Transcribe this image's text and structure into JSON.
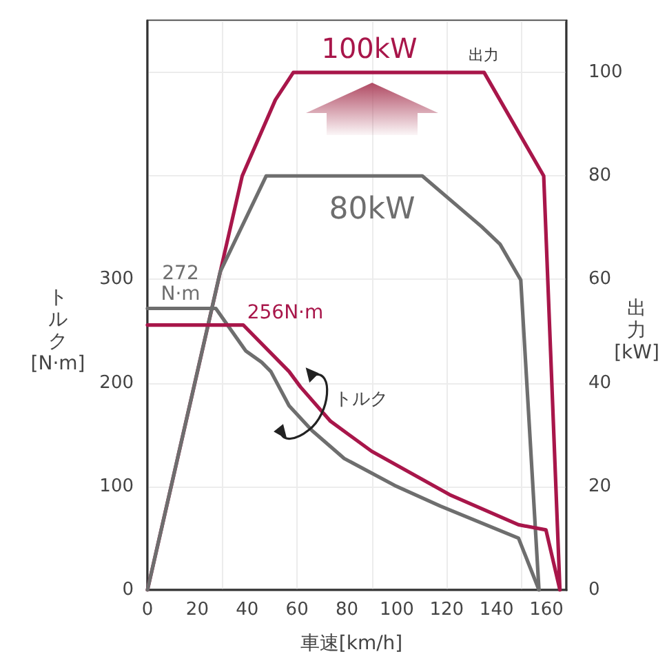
{
  "chart_data": {
    "type": "line",
    "xlabel": "車速[km/h]",
    "ylabel": "トルク [N·m]",
    "y2label": "出力 [kW]",
    "xlim": [
      0,
      168
    ],
    "xticks": [
      0,
      20,
      40,
      60,
      80,
      100,
      120,
      140,
      160
    ],
    "ylim": [
      0,
      550
    ],
    "yticks": [
      0,
      100,
      200,
      300
    ],
    "y2lim": [
      0,
      110
    ],
    "y2ticks": [
      0,
      20,
      40,
      60,
      80,
      100
    ],
    "grid": true,
    "series": [
      {
        "color": "#a8164a",
        "axis": "y2",
        "x": [
          0,
          38,
          51.3,
          58.5,
          135,
          158.9,
          165.4
        ],
        "values": [
          0,
          80,
          94.7,
          100,
          100,
          80,
          0
        ]
      },
      {
        "color": "#6e6e6e",
        "axis": "y2",
        "x": [
          0,
          29.2,
          47.6,
          110.2,
          134,
          141.4,
          149.7,
          157
        ],
        "values": [
          0,
          61.5,
          80,
          80,
          70.2,
          66.8,
          59.9,
          0
        ]
      },
      {
        "color": "#6e6e6e",
        "x": [
          0,
          27.4,
          39.4,
          45.8,
          49.5,
          56.8,
          66,
          78.9,
          99.1,
          117.5,
          148.8,
          157
        ],
        "values": [
          272,
          272,
          231,
          220,
          211,
          178,
          154,
          127,
          101,
          81,
          50,
          0
        ]
      },
      {
        "color": "#a8164a",
        "x": [
          0,
          38.4,
          56.8,
          61.4,
          73.4,
          89.9,
          121.2,
          148.8,
          159.8,
          165.4
        ],
        "values": [
          256,
          256,
          211,
          196,
          163,
          134,
          92,
          63,
          58,
          0
        ]
      }
    ],
    "annotations": [
      "100kW",
      "出力",
      "80kW",
      "272\nN·m",
      "256N·m",
      "トルク"
    ]
  }
}
